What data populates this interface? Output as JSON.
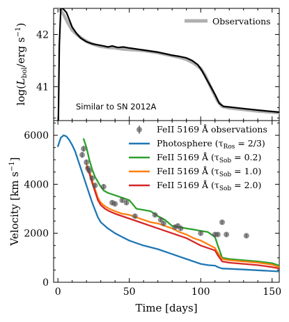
{
  "chart_data": [
    {
      "type": "line",
      "panel": "top",
      "ylabel": "log(L_bol/erg s^-1)",
      "ylabel_parts": {
        "pre": "log(",
        "L": "L",
        "sub": "bol",
        "mid": "/erg s",
        "sup": "−1",
        "post": ")"
      },
      "xlim": [
        -3,
        155
      ],
      "ylim": [
        40.35,
        42.5
      ],
      "yticks": [
        41,
        42
      ],
      "ytick_labels": [
        "41",
        "42"
      ],
      "annotation": "Similar to SN 2012A",
      "legend_position": "top-right",
      "series": [
        {
          "name": "Observations",
          "color": "#b0b0b0",
          "x": [
            1,
            4,
            7,
            10,
            14,
            18,
            22,
            26,
            30,
            35,
            40,
            45,
            50,
            55,
            60,
            65,
            70,
            75,
            80,
            85,
            90,
            95,
            100,
            103,
            106,
            109,
            112,
            115,
            120,
            130,
            140,
            155
          ],
          "y": [
            42.5,
            42.38,
            42.22,
            42.08,
            41.98,
            41.9,
            41.84,
            41.8,
            41.77,
            41.75,
            41.74,
            41.72,
            41.71,
            41.7,
            41.69,
            41.67,
            41.65,
            41.62,
            41.59,
            41.56,
            41.52,
            41.45,
            41.35,
            41.22,
            41.05,
            40.88,
            40.72,
            40.62,
            40.59,
            40.56,
            40.53,
            40.5
          ]
        },
        {
          "name": "",
          "color": "#000000",
          "x": [
            0.3,
            1,
            2,
            3,
            4,
            6,
            8,
            10,
            13,
            16,
            20,
            24,
            28,
            32,
            35,
            38,
            42,
            46,
            50,
            55,
            60,
            65,
            70,
            75,
            80,
            85,
            90,
            94,
            98,
            101,
            104,
            107,
            110,
            113,
            116,
            120,
            130,
            140,
            155
          ],
          "y": [
            40.35,
            41.8,
            42.5,
            42.5,
            42.48,
            42.42,
            42.28,
            42.14,
            42.02,
            41.93,
            41.86,
            41.82,
            41.8,
            41.78,
            41.76,
            41.78,
            41.75,
            41.76,
            41.74,
            41.72,
            41.7,
            41.68,
            41.66,
            41.63,
            41.6,
            41.58,
            41.55,
            41.5,
            41.42,
            41.3,
            41.15,
            41.0,
            40.85,
            40.68,
            40.62,
            40.61,
            40.58,
            40.55,
            40.51
          ]
        }
      ]
    },
    {
      "type": "line",
      "panel": "bottom",
      "xlabel": "Time [days]",
      "ylabel": "Velocity [km s^-1]",
      "ylabel_parts": {
        "pre": "Velocity [km s",
        "sup": "−1",
        "post": "]"
      },
      "xlim": [
        -3,
        155
      ],
      "ylim": [
        0,
        6600
      ],
      "xticks": [
        0,
        50,
        100,
        150
      ],
      "xtick_labels": [
        "0",
        "50",
        "100",
        "150"
      ],
      "yticks": [
        0,
        2000,
        4000,
        6000
      ],
      "ytick_labels": [
        "0",
        "2000",
        "4000",
        "6000"
      ],
      "legend_position": "top-right",
      "legend": [
        {
          "marker": "errorbar-point",
          "label": "FeII 5169 Å observations",
          "color": "#555555"
        },
        {
          "marker": "line",
          "pre": "Photosphere (τ",
          "sub": "Ros",
          "post": " = 2/3)",
          "color": "#1f77b4"
        },
        {
          "marker": "line",
          "pre": "FeII 5169 Å (τ",
          "sub": "Sob",
          "post": " = 0.2)",
          "color": "#2ca02c"
        },
        {
          "marker": "line",
          "pre": "FeII 5169 Å (τ",
          "sub": "Sob",
          "post": " = 1.0)",
          "color": "#ff7f0e"
        },
        {
          "marker": "line",
          "pre": "FeII 5169 Å (τ",
          "sub": "Sob",
          "post": " = 2.0)",
          "color": "#d62728"
        }
      ],
      "observations": {
        "x": [
          17,
          18,
          20,
          21,
          22,
          24,
          26,
          32,
          38,
          40,
          45,
          48,
          54,
          68,
          72,
          74,
          82,
          84,
          86,
          100,
          110,
          112,
          115,
          118,
          132
        ],
        "y": [
          5200,
          5450,
          4900,
          4650,
          4550,
          4250,
          3950,
          3900,
          3250,
          3200,
          3350,
          3250,
          2700,
          2750,
          2550,
          2400,
          2250,
          2300,
          2200,
          2000,
          1950,
          1950,
          2450,
          1950,
          1900
        ],
        "yerr": [
          120,
          120,
          110,
          110,
          110,
          100,
          100,
          100,
          90,
          90,
          90,
          90,
          80,
          80,
          80,
          80,
          80,
          80,
          80,
          80,
          80,
          80,
          80,
          80,
          80
        ]
      },
      "series": [
        {
          "name": "Photosphere (τRos = 2/3)",
          "color": "#1f77b4",
          "x": [
            0,
            2,
            4,
            6,
            8,
            10,
            12,
            14,
            16,
            18,
            20,
            22,
            24,
            26,
            28,
            30,
            35,
            40,
            45,
            50,
            55,
            60,
            70,
            80,
            90,
            100,
            105,
            110,
            112,
            115,
            120,
            130,
            140,
            155
          ],
          "y": [
            5550,
            5900,
            6000,
            5950,
            5800,
            5600,
            5350,
            5000,
            4650,
            4300,
            3950,
            3600,
            3250,
            2950,
            2650,
            2450,
            2200,
            2000,
            1850,
            1700,
            1600,
            1500,
            1350,
            1150,
            950,
            750,
            700,
            680,
            620,
            560,
            550,
            520,
            490,
            440
          ]
        },
        {
          "name": "FeII 5169 Å (τSob = 0.2)",
          "color": "#2ca02c",
          "x": [
            18,
            20,
            22,
            24,
            26,
            28,
            30,
            32,
            35,
            40,
            45,
            50,
            55,
            60,
            65,
            70,
            75,
            80,
            85,
            90,
            95,
            100,
            105,
            110,
            112,
            115,
            120,
            130,
            140,
            150,
            155
          ],
          "y": [
            5850,
            5500,
            5000,
            4600,
            4300,
            4100,
            3900,
            3750,
            3650,
            3550,
            3450,
            3350,
            3000,
            2950,
            2900,
            2700,
            2550,
            2300,
            2250,
            2200,
            2150,
            2100,
            2050,
            1850,
            1500,
            1000,
            950,
            900,
            850,
            780,
            680
          ]
        },
        {
          "name": "FeII 5169 Å (τSob = 1.0)",
          "color": "#ff7f0e",
          "x": [
            20,
            22,
            24,
            26,
            28,
            30,
            33,
            36,
            40,
            45,
            50,
            55,
            60,
            65,
            70,
            75,
            80,
            85,
            90,
            95,
            100,
            105,
            110,
            112,
            115,
            120,
            130,
            140,
            150,
            155
          ],
          "y": [
            4800,
            4550,
            4150,
            3800,
            3450,
            3250,
            3100,
            3000,
            2900,
            2800,
            2750,
            2650,
            2550,
            2450,
            2400,
            2300,
            2200,
            2050,
            1950,
            1800,
            1700,
            1550,
            1400,
            1200,
            950,
            900,
            850,
            800,
            720,
            620
          ]
        },
        {
          "name": "FeII 5169 Å (τSob = 2.0)",
          "color": "#d62728",
          "x": [
            20,
            22,
            24,
            26,
            28,
            30,
            33,
            36,
            40,
            45,
            50,
            55,
            60,
            65,
            70,
            75,
            80,
            85,
            90,
            95,
            100,
            105,
            110,
            112,
            115,
            120,
            130,
            140,
            150,
            155
          ],
          "y": [
            4700,
            4450,
            4050,
            3700,
            3350,
            3150,
            3000,
            2900,
            2800,
            2700,
            2600,
            2500,
            2400,
            2300,
            2200,
            2100,
            2000,
            1900,
            1800,
            1650,
            1500,
            1400,
            1300,
            1100,
            850,
            800,
            750,
            700,
            620,
            560
          ]
        }
      ]
    }
  ]
}
